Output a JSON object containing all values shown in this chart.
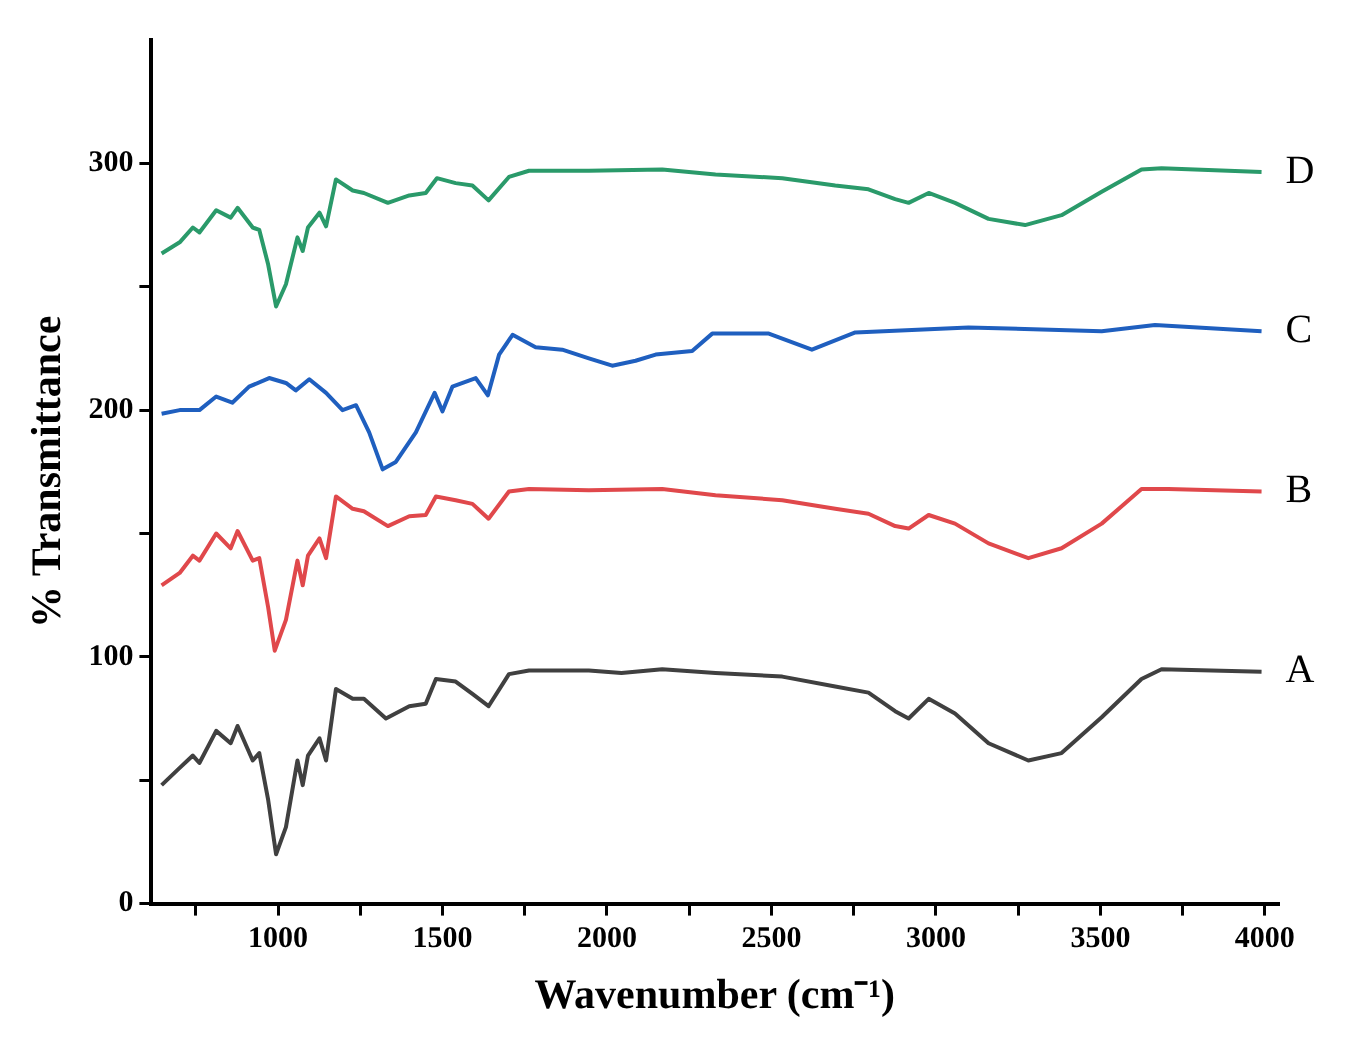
{
  "chart_data": {
    "type": "line",
    "xlabel": "Wavenumber (cm⁻¹)",
    "ylabel": "% Transmittance",
    "xlim": [
      615,
      4040
    ],
    "xticks": [
      {
        "value": 750,
        "label": null
      },
      1000,
      {
        "value": 1250,
        "label": null
      },
      1500,
      {
        "value": 1750,
        "label": null
      },
      2000,
      {
        "value": 2250,
        "label": null
      },
      2500,
      {
        "value": 2750,
        "label": null
      },
      3000,
      {
        "value": 3250,
        "label": null
      },
      3500,
      {
        "value": 3750,
        "label": null
      },
      4000
    ],
    "ylim": [
      0,
      350
    ],
    "yticks": [
      0,
      {
        "value": 50,
        "label": null
      },
      100,
      {
        "value": 150,
        "label": null
      },
      200,
      {
        "value": 250,
        "label": null
      },
      300
    ],
    "grid": false,
    "legend": false,
    "marker": "none",
    "line_style": "solid",
    "series": [
      {
        "name": "A",
        "color": "#404040",
        "x": [
          646,
          701,
          741,
          761,
          812,
          856,
          877,
          923,
          943,
          970,
          994,
          1024,
          1059,
          1075,
          1091,
          1126,
          1146,
          1176,
          1227,
          1261,
          1328,
          1399,
          1449,
          1480,
          1540,
          1591,
          1640,
          1702,
          1763,
          1945,
          2044,
          2168,
          2330,
          2533,
          2694,
          2795,
          2876,
          2917,
          2978,
          3058,
          3160,
          3281,
          3382,
          3504,
          3625,
          3686,
          3990
        ],
        "values": [
          48,
          55,
          60,
          57,
          70,
          65,
          72,
          58,
          61,
          42,
          20,
          31,
          58,
          48,
          60,
          67,
          58,
          87,
          83,
          83,
          75,
          80,
          81,
          91,
          90,
          85,
          80,
          93,
          94.5,
          94.5,
          93.5,
          95,
          93.5,
          92,
          88,
          85.5,
          78,
          75,
          83,
          77,
          65,
          58,
          61,
          75.5,
          91,
          95,
          94
        ]
      },
      {
        "name": "B",
        "color": "#e0484b",
        "x": [
          646,
          701,
          741,
          761,
          812,
          856,
          877,
          923,
          943,
          970,
          990,
          1024,
          1059,
          1075,
          1091,
          1126,
          1146,
          1176,
          1227,
          1261,
          1334,
          1399,
          1449,
          1480,
          1540,
          1591,
          1640,
          1702,
          1763,
          1945,
          2168,
          2330,
          2533,
          2694,
          2795,
          2876,
          2917,
          2978,
          3058,
          3160,
          3281,
          3382,
          3504,
          3625,
          3706,
          3990
        ],
        "values": [
          129,
          134,
          141,
          139,
          150,
          144,
          151,
          139,
          140,
          120,
          102.5,
          115,
          139,
          129,
          141,
          148,
          140,
          165,
          160,
          159,
          153,
          157,
          157.5,
          165,
          163.5,
          162,
          156,
          167,
          168,
          167.5,
          168,
          165.5,
          163.5,
          160,
          158,
          153,
          152,
          157.5,
          154,
          146,
          140,
          144,
          154,
          168,
          168,
          167
        ]
      },
      {
        "name": "C",
        "color": "#1f5fbf",
        "x": [
          646,
          701,
          761,
          812,
          861,
          912,
          973,
          1024,
          1054,
          1095,
          1146,
          1196,
          1237,
          1277,
          1318,
          1358,
          1419,
          1476,
          1500,
          1530,
          1601,
          1638,
          1672,
          1713,
          1783,
          1864,
          1945,
          2016,
          2087,
          2148,
          2259,
          2320,
          2492,
          2623,
          2755,
          3099,
          3504,
          3666,
          3990
        ],
        "values": [
          198.5,
          200,
          200,
          205.5,
          203,
          209.5,
          213,
          211,
          208,
          212.5,
          207,
          200,
          202,
          191,
          176,
          179,
          191,
          207,
          199.5,
          209.5,
          213,
          206,
          222.5,
          230.5,
          225.5,
          224.5,
          221,
          218,
          220,
          222.5,
          224,
          231,
          231,
          224.5,
          231.5,
          233.5,
          232,
          234.5,
          232
        ]
      },
      {
        "name": "D",
        "color": "#2a9a6a",
        "x": [
          646,
          701,
          741,
          761,
          812,
          856,
          877,
          923,
          943,
          970,
          994,
          1024,
          1059,
          1075,
          1091,
          1126,
          1146,
          1176,
          1227,
          1261,
          1334,
          1399,
          1449,
          1483,
          1540,
          1591,
          1640,
          1702,
          1763,
          1945,
          2168,
          2330,
          2533,
          2694,
          2795,
          2876,
          2917,
          2978,
          3058,
          3160,
          3271,
          3382,
          3504,
          3625,
          3686,
          3990
        ],
        "values": [
          263.5,
          268,
          274,
          272,
          281,
          278,
          282,
          274,
          273,
          259,
          242,
          251,
          270,
          264.5,
          274,
          280,
          274.5,
          293.5,
          289,
          288,
          284,
          287,
          288,
          294,
          292,
          291,
          285,
          294.5,
          297,
          297,
          297.5,
          295.5,
          294,
          291,
          289.5,
          285.5,
          284,
          288,
          284,
          277.5,
          275,
          279,
          288.5,
          297.5,
          298,
          296.5
        ]
      }
    ]
  }
}
